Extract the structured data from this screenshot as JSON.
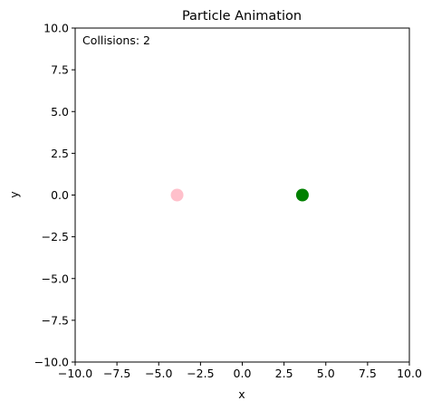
{
  "chart_data": {
    "type": "scatter",
    "title": "Particle Animation",
    "xlabel": "x",
    "ylabel": "y",
    "xlim": [
      -10,
      10
    ],
    "ylim": [
      -10,
      10
    ],
    "xticks": [
      "−10.0",
      "−7.5",
      "−5.0",
      "−2.5",
      "0.0",
      "2.5",
      "5.0",
      "7.5",
      "10.0"
    ],
    "yticks": [
      "−10.0",
      "−7.5",
      "−5.0",
      "−2.5",
      "0.0",
      "2.5",
      "5.0",
      "7.5",
      "10.0"
    ],
    "grid": false,
    "annotation": "Collisions: 2",
    "points": [
      {
        "x": -3.9,
        "y": 0.0,
        "color": "#ffc0cb"
      },
      {
        "x": 3.6,
        "y": 0.0,
        "color": "#008000"
      }
    ]
  }
}
